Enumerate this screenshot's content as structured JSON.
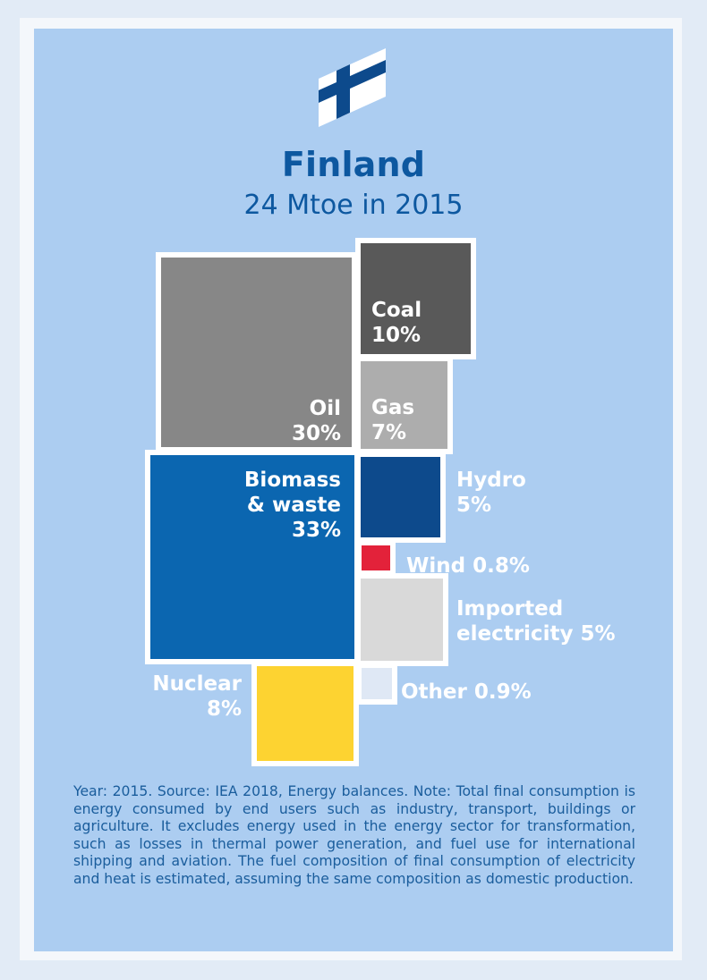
{
  "title": "Finland",
  "subtitle": "24 Mtoe in 2015",
  "footnote": "Year: 2015. Source: IEA 2018, Energy balances. Note: Total final consumption is energy consumed by end users such as industry, transport, buildings or agriculture. It excludes energy used in the energy sector for transformation, such as losses in thermal power generation, and fuel use for international shipping and aviation. The fuel composition of final consumption of electricity and heat is estimated, assuming the same composition as domestic production.",
  "colors": {
    "background": "#accdf1",
    "title": "#0d58a0",
    "label_on_light": "#ffffff",
    "flag_cross": "#0d4a8c"
  },
  "chart_data": {
    "type": "treemap",
    "title": "Finland",
    "subtitle": "24 Mtoe in 2015",
    "total": 24,
    "unit": "Mtoe",
    "year": 2015,
    "segments": [
      {
        "name": "Oil",
        "label_lines": [
          "Oil",
          "30%"
        ],
        "percent": 30,
        "color": "#878787"
      },
      {
        "name": "Coal",
        "label_lines": [
          "Coal",
          "10%"
        ],
        "percent": 10,
        "color": "#595959"
      },
      {
        "name": "Gas",
        "label_lines": [
          "Gas",
          "7%"
        ],
        "percent": 7,
        "color": "#adadad"
      },
      {
        "name": "Biomass & waste",
        "label_lines": [
          "Biomass",
          "& waste",
          "33%"
        ],
        "percent": 33,
        "color": "#0b66b0"
      },
      {
        "name": "Hydro",
        "label_lines": [
          "Hydro",
          "5%"
        ],
        "percent": 5,
        "color": "#0d4a8c"
      },
      {
        "name": "Wind",
        "label_lines": [
          "Wind 0.8%"
        ],
        "percent": 0.8,
        "color": "#e3223a"
      },
      {
        "name": "Imported electricity",
        "label_lines": [
          "Imported",
          "electricity 5%"
        ],
        "percent": 5,
        "color": "#d9d9d9"
      },
      {
        "name": "Nuclear",
        "label_lines": [
          "Nuclear",
          "8%"
        ],
        "percent": 8,
        "color": "#fdd331"
      },
      {
        "name": "Other",
        "label_lines": [
          "Other 0.9%"
        ],
        "percent": 0.9,
        "color": "#dfe8f5"
      }
    ]
  }
}
